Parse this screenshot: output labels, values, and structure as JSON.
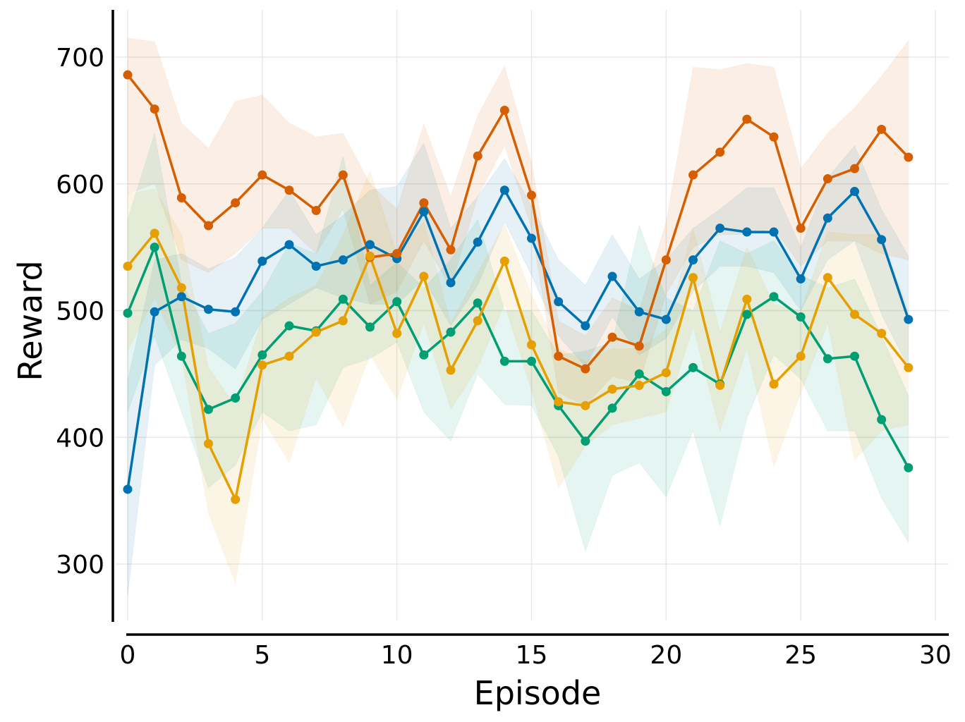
{
  "chart_data": {
    "type": "line",
    "title": "",
    "xlabel": "Episode",
    "ylabel": "Reward",
    "xlim": [
      0,
      30
    ],
    "ylim": [
      255,
      740
    ],
    "xticks": [
      0,
      5,
      10,
      15,
      20,
      25,
      30
    ],
    "yticks": [
      300,
      400,
      500,
      600,
      700
    ],
    "grid": true,
    "legend": "none",
    "x": [
      0,
      1,
      2,
      3,
      4,
      5,
      6,
      7,
      8,
      9,
      10,
      11,
      12,
      13,
      14,
      15,
      16,
      17,
      18,
      19,
      20,
      21,
      22,
      23,
      24,
      25,
      26,
      27,
      28,
      29
    ],
    "series": [
      {
        "name": "blue",
        "color": "#0072b2",
        "values": [
          359,
          499,
          511,
          501,
          499,
          539,
          552,
          535,
          540,
          552,
          541,
          578,
          522,
          554,
          595,
          557,
          507,
          488,
          527,
          499,
          493,
          540,
          565,
          562,
          562,
          525,
          573,
          594,
          556,
          493
        ],
        "lower": [
          275,
          457,
          477,
          470,
          454,
          493,
          505,
          518,
          510,
          505,
          505,
          525,
          488,
          520,
          570,
          528,
          480,
          456,
          495,
          465,
          478,
          515,
          535,
          535,
          530,
          500,
          540,
          555,
          497,
          455
        ],
        "upper": [
          445,
          540,
          545,
          533,
          542,
          565,
          595,
          560,
          575,
          595,
          598,
          632,
          565,
          590,
          620,
          583,
          540,
          520,
          560,
          525,
          540,
          565,
          580,
          597,
          597,
          550,
          605,
          630,
          580,
          543
        ]
      },
      {
        "name": "orange",
        "color": "#d55e00",
        "values": [
          686,
          659,
          589,
          567,
          585,
          607,
          595,
          579,
          607,
          542,
          545,
          585,
          548,
          622,
          658,
          591,
          464,
          454,
          479,
          472,
          540,
          607,
          625,
          651,
          637,
          565,
          604,
          612,
          643,
          621
        ],
        "lower": [
          592,
          600,
          540,
          530,
          545,
          565,
          565,
          545,
          580,
          505,
          515,
          555,
          518,
          590,
          630,
          565,
          435,
          425,
          448,
          443,
          513,
          550,
          560,
          560,
          565,
          535,
          555,
          555,
          545,
          540
        ],
        "upper": [
          715,
          712,
          648,
          628,
          665,
          670,
          648,
          637,
          640,
          600,
          580,
          647,
          590,
          654,
          693,
          617,
          492,
          480,
          510,
          500,
          570,
          692,
          690,
          695,
          692,
          612,
          640,
          660,
          685,
          713
        ]
      },
      {
        "name": "green",
        "color": "#009e73",
        "values": [
          498,
          550,
          464,
          422,
          431,
          465,
          488,
          484,
          509,
          487,
          507,
          465,
          483,
          506,
          460,
          460,
          425,
          397,
          423,
          450,
          436,
          455,
          442,
          497,
          511,
          495,
          462,
          464,
          414,
          376
        ],
        "lower": [
          420,
          480,
          420,
          360,
          378,
          420,
          405,
          410,
          455,
          462,
          475,
          420,
          397,
          450,
          426,
          425,
          385,
          310,
          370,
          380,
          353,
          405,
          330,
          415,
          465,
          446,
          405,
          405,
          352,
          317
        ],
        "upper": [
          572,
          640,
          522,
          482,
          490,
          515,
          553,
          545,
          622,
          520,
          538,
          518,
          540,
          572,
          500,
          500,
          465,
          468,
          475,
          567,
          510,
          500,
          555,
          545,
          555,
          528,
          518,
          525,
          480,
          433
        ]
      },
      {
        "name": "yellow",
        "color": "#e69f00",
        "values": [
          535,
          561,
          518,
          395,
          351,
          457,
          464,
          483,
          492,
          543,
          482,
          527,
          453,
          492,
          539,
          473,
          428,
          425,
          438,
          441,
          451,
          526,
          441,
          509,
          442,
          464,
          526,
          497,
          482,
          455
        ],
        "lower": [
          468,
          510,
          463,
          340,
          285,
          415,
          380,
          447,
          408,
          465,
          430,
          490,
          422,
          455,
          505,
          437,
          360,
          393,
          410,
          415,
          420,
          487,
          405,
          470,
          377,
          435,
          490,
          382,
          405,
          410
        ],
        "upper": [
          592,
          596,
          560,
          455,
          425,
          495,
          510,
          520,
          560,
          610,
          545,
          570,
          490,
          530,
          568,
          512,
          470,
          460,
          470,
          470,
          485,
          565,
          483,
          550,
          505,
          500,
          562,
          560,
          560,
          500
        ]
      }
    ]
  }
}
